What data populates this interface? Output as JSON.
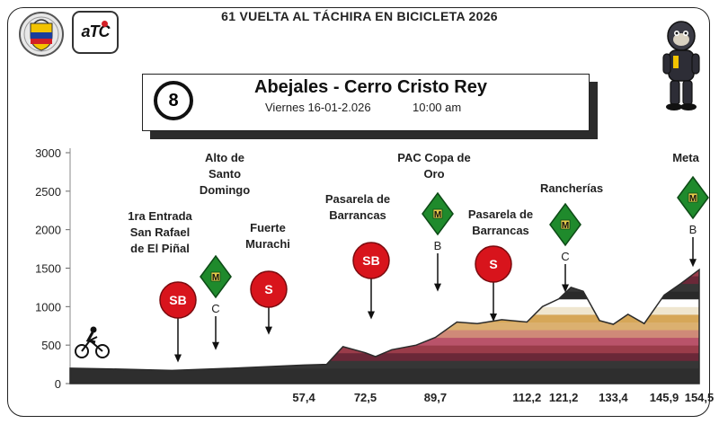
{
  "header": {
    "event_title": "61 VUELTA AL TÁCHIRA EN BICICLETA 2026",
    "logo_text": "aTC"
  },
  "stage": {
    "number": "8",
    "name": "Abejales - Cerro Cristo Rey",
    "date": "Viernes 16-01-2.026",
    "time": "10:00 am"
  },
  "colors": {
    "sprint_red": "#d8141c",
    "mountain_green": "#1f8a2c",
    "profile_dark": "#2a2a2a"
  },
  "chart_data": {
    "type": "area",
    "title": "",
    "xlabel": "",
    "ylabel": "",
    "ylim": [
      0,
      3000
    ],
    "yticks": [
      "0",
      "500",
      "1000",
      "1500",
      "2000",
      "2500",
      "3000"
    ],
    "xlim": [
      0,
      154.5
    ],
    "x_tick_labels": [
      "57,4",
      "72,5",
      "89,7",
      "112,2",
      "121,2",
      "133,4",
      "145,9",
      "154,5"
    ],
    "x_tick_values": [
      57.4,
      72.5,
      89.7,
      112.2,
      121.2,
      133.4,
      145.9,
      154.5
    ],
    "series": [
      {
        "x": [
          0,
          10,
          25,
          40,
          57.4,
          63,
          67,
          72.5,
          75,
          79,
          85,
          89.7,
          95,
          100,
          106,
          112.2,
          116,
          120,
          123,
          126,
          130,
          133.4,
          137,
          141,
          145.9,
          150,
          154.5
        ],
        "y": [
          200,
          190,
          170,
          200,
          240,
          250,
          480,
          400,
          350,
          440,
          500,
          600,
          800,
          780,
          830,
          800,
          1000,
          1100,
          1250,
          1200,
          820,
          770,
          900,
          780,
          1150,
          1300,
          1480
        ]
      }
    ],
    "annotations": [
      {
        "km": 57.4,
        "label": [
          "1ra Entrada",
          "San Rafael",
          "de El Piñal"
        ],
        "marker": "SB",
        "marker_type": "sprint"
      },
      {
        "km": 72.5,
        "label": [
          "Alto de",
          "Santo",
          "Domingo"
        ],
        "marker": "M",
        "marker_type": "mountain",
        "category": "C"
      },
      {
        "km": 89.7,
        "label": [
          "Fuerte",
          "Murachi"
        ],
        "marker": "S",
        "marker_type": "sprint"
      },
      {
        "km": 112.2,
        "label": [
          "Pasarela de",
          "Barrancas"
        ],
        "marker": "SB",
        "marker_type": "sprint"
      },
      {
        "km": 121.2,
        "label": [
          "PAC Copa de",
          "Oro"
        ],
        "marker": "M",
        "marker_type": "mountain",
        "category": "B"
      },
      {
        "km": 133.4,
        "label": [
          "Pasarela de",
          "Barrancas"
        ],
        "marker": "S",
        "marker_type": "sprint"
      },
      {
        "km": 145.9,
        "label": [
          "Rancherías"
        ],
        "marker": "M",
        "marker_type": "mountain",
        "category": "C"
      },
      {
        "km": 154.5,
        "label": [
          "Meta"
        ],
        "marker": "M",
        "marker_type": "mountain",
        "category": "B"
      }
    ]
  }
}
